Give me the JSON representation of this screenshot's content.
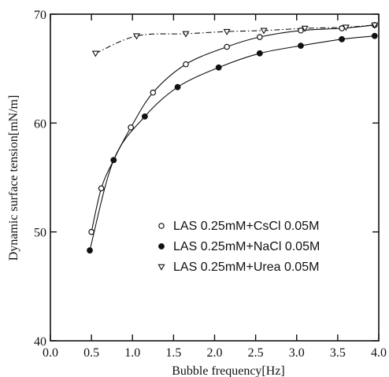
{
  "chart_data": {
    "type": "line",
    "xlabel": "Bubble frequency[Hz]",
    "ylabel": "Dynamic surface tension[mN/m]",
    "xlim": [
      0.0,
      4.0
    ],
    "ylim": [
      40,
      70
    ],
    "xticks": [
      "0.0",
      "0.5",
      "1.0",
      "1.5",
      "2.0",
      "2.5",
      "3.0",
      "3.5",
      "4.0"
    ],
    "yticks": [
      "40",
      "50",
      "60",
      "70"
    ],
    "grid": false,
    "legend_position": "right-middle",
    "series": [
      {
        "name": "LAS 0.25mM+CsCl 0.05M",
        "marker": "open-circle",
        "line_style": "solid",
        "x": [
          0.5,
          0.62,
          0.77,
          0.98,
          1.25,
          1.65,
          2.15,
          2.55,
          3.05,
          3.55,
          3.95
        ],
        "y": [
          50.0,
          54.0,
          56.6,
          59.6,
          62.8,
          65.4,
          67.0,
          67.9,
          68.5,
          68.7,
          69.0
        ]
      },
      {
        "name": "LAS 0.25mM+NaCl 0.05M",
        "marker": "filled-circle",
        "line_style": "solid",
        "x": [
          0.48,
          0.77,
          1.15,
          1.55,
          2.05,
          2.55,
          3.05,
          3.55,
          3.95
        ],
        "y": [
          48.3,
          56.6,
          60.6,
          63.3,
          65.1,
          66.4,
          67.1,
          67.7,
          68.0
        ]
      },
      {
        "name": "LAS 0.25mM+Urea 0.05M",
        "marker": "open-triangle-down",
        "line_style": "dash-dot",
        "x": [
          0.55,
          1.05,
          1.65,
          2.15,
          2.6,
          3.1,
          3.6,
          3.95
        ],
        "y": [
          66.4,
          68.0,
          68.2,
          68.4,
          68.5,
          68.7,
          68.8,
          69.0
        ]
      }
    ]
  }
}
